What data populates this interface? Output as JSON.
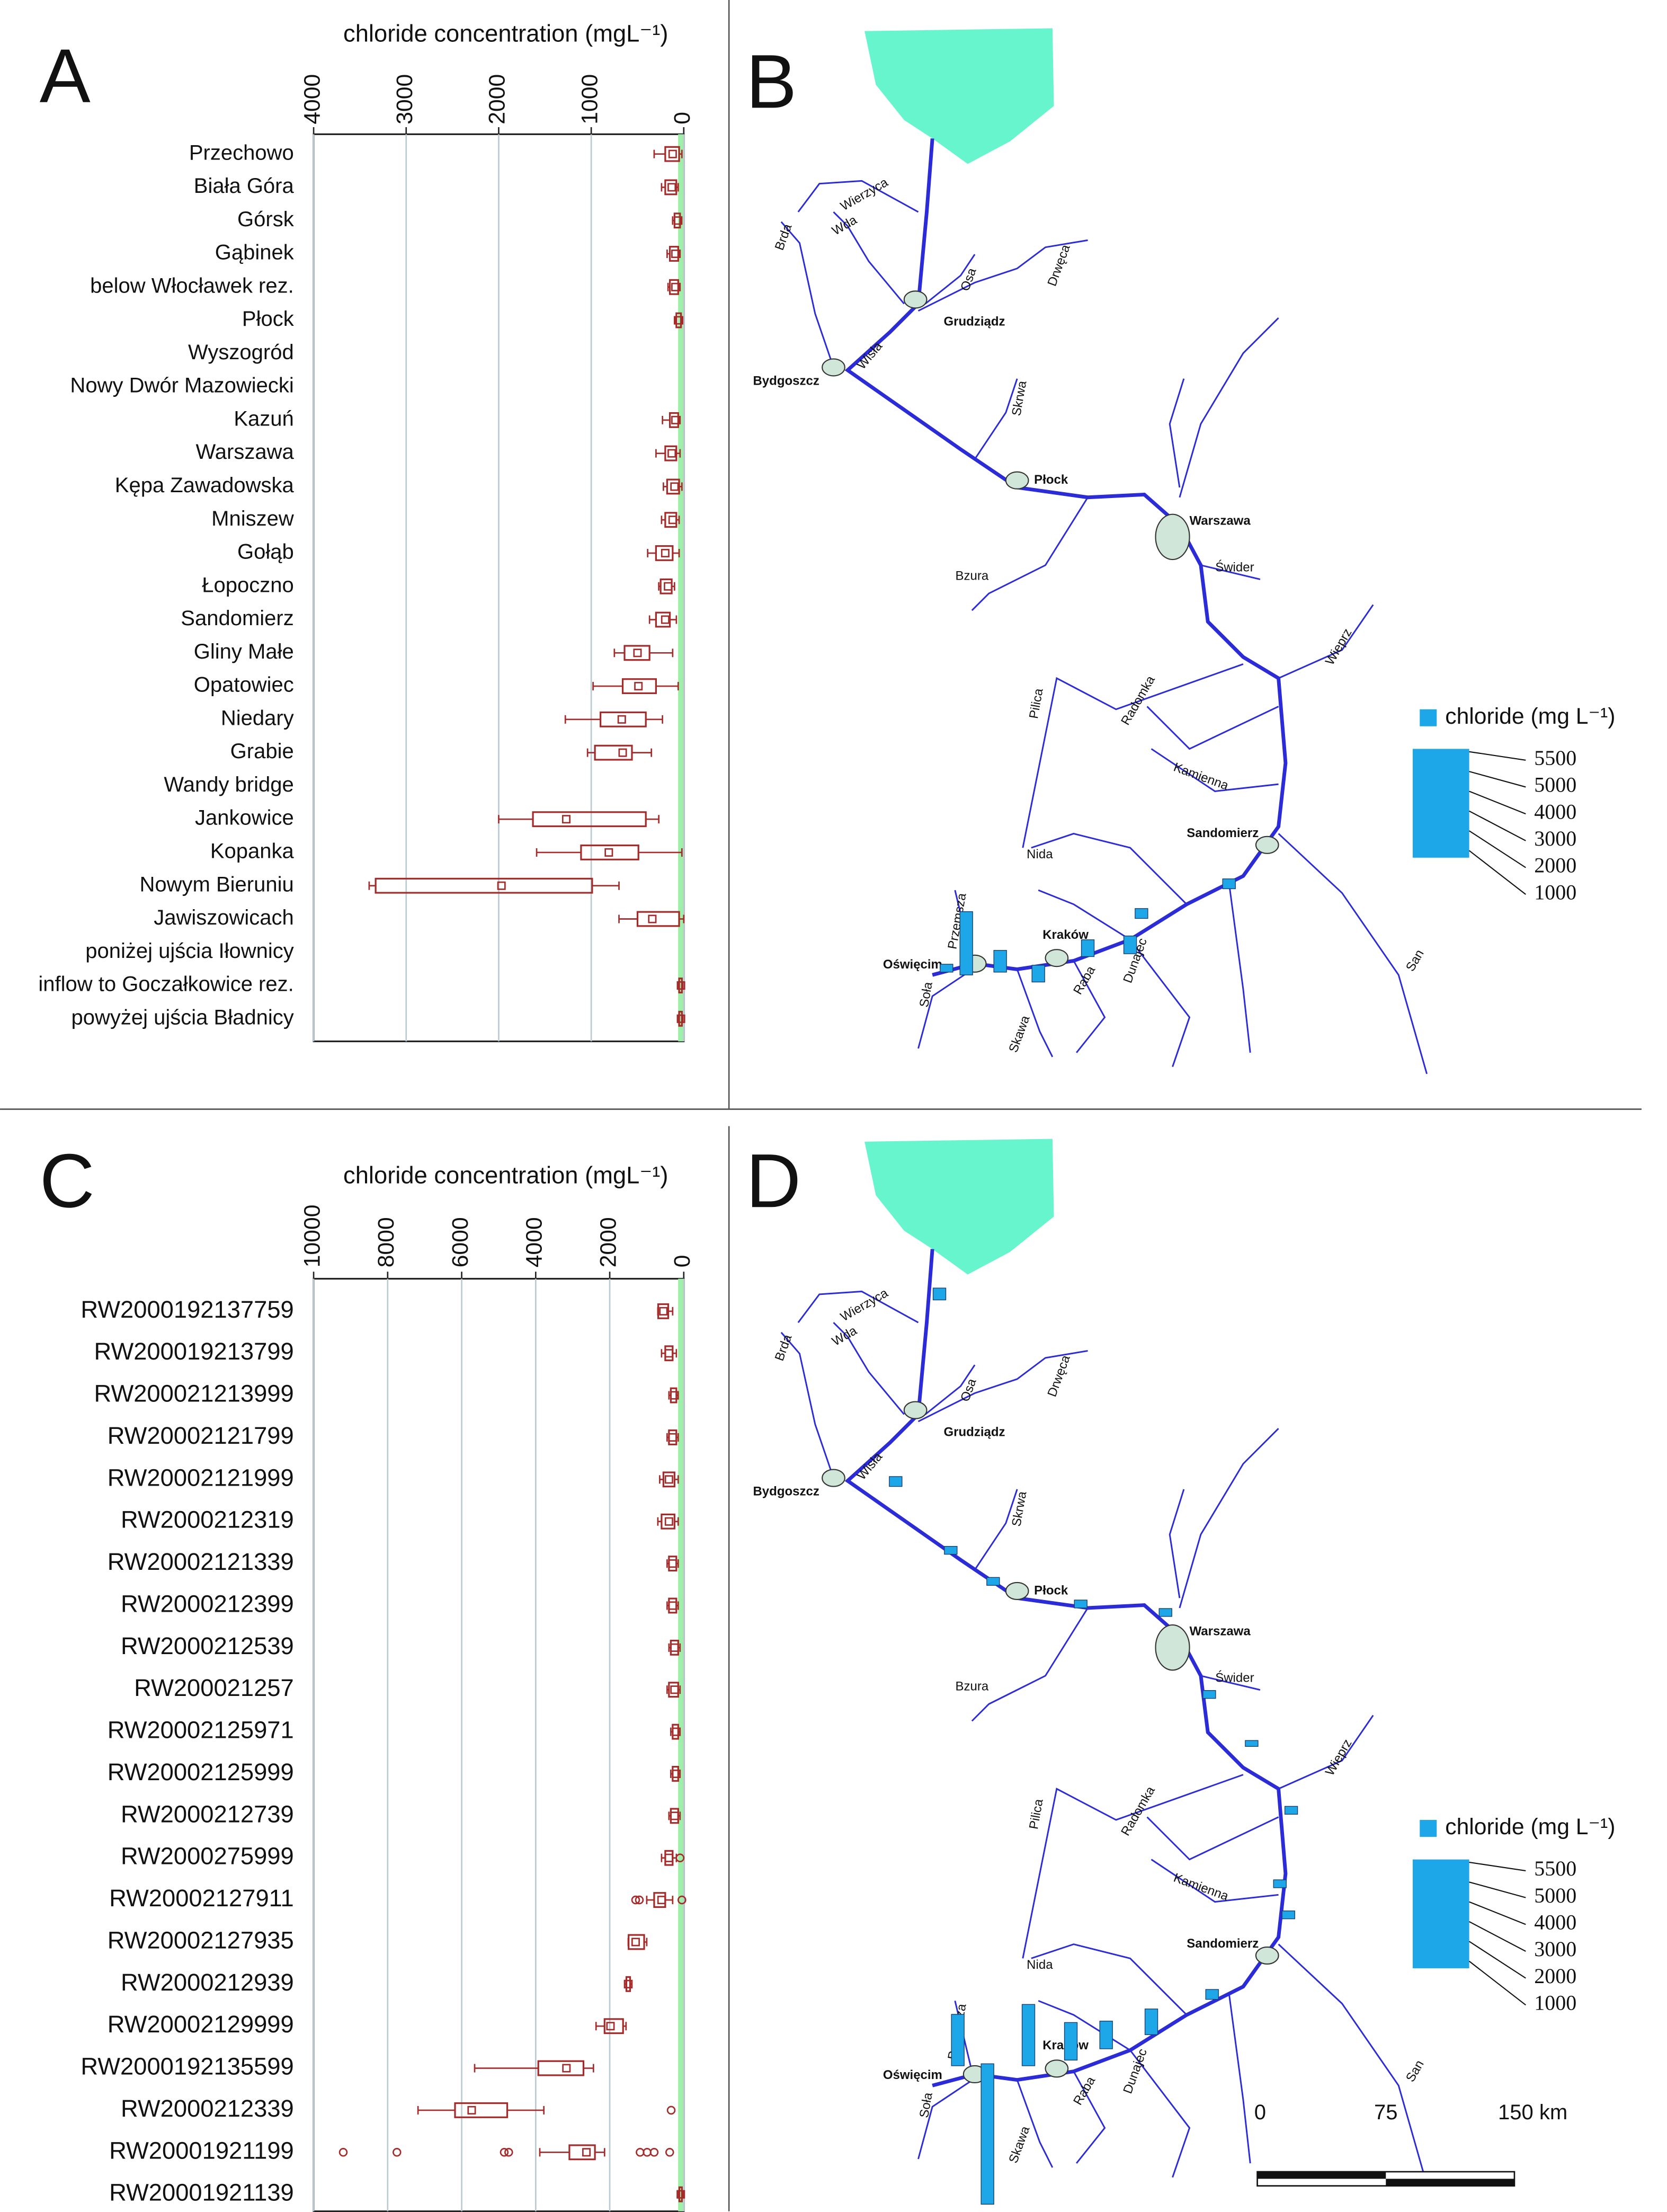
{
  "chart_data": [
    {
      "type": "boxplot",
      "panel_label": "A",
      "xlabel": "chloride concentration (mgL⁻¹)",
      "xlim": [
        0,
        4000
      ],
      "xticks": [
        0,
        1000,
        2000,
        3000,
        4000
      ],
      "x_reversed": true,
      "grid": true,
      "color": "#a52a2a",
      "categories": [
        "Przechowo",
        "Biała Góra",
        "Górsk",
        "Gąbinek",
        "below Włocławek rez.",
        "Płock",
        "Wyszogród",
        "Nowy Dwór Mazowiecki",
        "Kazuń",
        "Warszawa",
        "Kępa Zawadowska",
        "Mniszew",
        "Gołąb",
        "Łopoczno",
        "Sandomierz",
        "Gliny Małe",
        "Opatowiec",
        "Niedary",
        "Grabie",
        "Wandy bridge",
        "Jankowice",
        "Kopanka",
        "Nowym Bieruniu",
        "Jawiszowicach",
        "poniżej ujścia Iłownicy",
        "inflow to Goczałkowice rez.",
        "powyżej ujścia Bładnicy"
      ],
      "boxes": [
        [
          20,
          50,
          120,
          200,
          320
        ],
        [
          60,
          80,
          130,
          200,
          240
        ],
        [
          30,
          40,
          60,
          100,
          120
        ],
        [
          40,
          60,
          90,
          150,
          180
        ],
        [
          40,
          60,
          90,
          150,
          170
        ],
        [
          20,
          30,
          50,
          80,
          100
        ],
        null,
        null,
        [
          40,
          60,
          90,
          150,
          230
        ],
        [
          40,
          80,
          130,
          200,
          300
        ],
        [
          20,
          50,
          100,
          180,
          220
        ],
        [
          50,
          80,
          120,
          200,
          240
        ],
        [
          50,
          120,
          200,
          300,
          390
        ],
        [
          100,
          130,
          170,
          250,
          270
        ],
        [
          80,
          150,
          200,
          300,
          370
        ],
        [
          120,
          370,
          500,
          640,
          750
        ],
        [
          60,
          300,
          490,
          660,
          980
        ],
        [
          230,
          410,
          670,
          900,
          1280
        ],
        [
          350,
          560,
          660,
          960,
          1040
        ],
        null,
        [
          270,
          410,
          1270,
          1630,
          2000
        ],
        [
          20,
          490,
          810,
          1110,
          1590
        ],
        [
          700,
          990,
          1970,
          3330,
          3400
        ],
        [
          0,
          50,
          340,
          500,
          700
        ],
        null,
        [
          10,
          20,
          30,
          50,
          60
        ],
        [
          10,
          20,
          30,
          50,
          60
        ]
      ]
    },
    {
      "type": "map",
      "panel_label": "B",
      "legend_title": "chloride (mg L⁻¹)",
      "legend_ticks": [
        5500,
        5000,
        4000,
        3000,
        2000,
        1000
      ],
      "bar_color": "#1ea7e8",
      "cities": [
        "Grudziądz",
        "Bydgoszcz",
        "Płock",
        "Warszawa",
        "Sandomierz",
        "Kraków",
        "Oświęcim"
      ],
      "rivers": [
        "Wierzyca",
        "Wda",
        "Brda",
        "Osa",
        "Drwęca",
        "Wisła",
        "Skrwa",
        "Bzura",
        "Świder",
        "Pilica",
        "Radomka",
        "Wieprz",
        "Kamienna",
        "Nida",
        "San",
        "Soła",
        "Skawa",
        "Raba",
        "Dunajec",
        "Przemsza"
      ],
      "bars": [
        3200,
        1100,
        850,
        850,
        900,
        500,
        500,
        400
      ]
    },
    {
      "type": "boxplot",
      "panel_label": "C",
      "xlabel": "chloride concentration (mgL⁻¹)",
      "xlim": [
        0,
        10000
      ],
      "xticks": [
        0,
        2000,
        4000,
        6000,
        8000,
        10000
      ],
      "x_reversed": true,
      "grid": true,
      "color": "#a52a2a",
      "categories": [
        "RW2000192137759",
        "RW200019213799",
        "RW200021213999",
        "RW20002121799",
        "RW20002121999",
        "RW2000212319",
        "RW20002121339",
        "RW2000212399",
        "RW2000212539",
        "RW200021257",
        "RW20002125971",
        "RW20002125999",
        "RW2000212739",
        "RW2000275999",
        "RW20002127911",
        "RW20002127935",
        "RW2000212939",
        "RW20002129999",
        "RW2000192135599",
        "RW2000212339",
        "RW20001921199",
        "RW20001921139"
      ],
      "boxes": [
        [
          300,
          420,
          550,
          690,
          700
        ],
        [
          200,
          300,
          400,
          500,
          600
        ],
        [
          150,
          200,
          250,
          350,
          400
        ],
        [
          150,
          200,
          300,
          400,
          450
        ],
        [
          150,
          250,
          400,
          550,
          650
        ],
        [
          150,
          250,
          400,
          600,
          700
        ],
        [
          150,
          200,
          300,
          400,
          450
        ],
        [
          150,
          200,
          300,
          400,
          450
        ],
        [
          100,
          150,
          250,
          350,
          400
        ],
        [
          100,
          150,
          250,
          400,
          450
        ],
        [
          100,
          150,
          200,
          300,
          350
        ],
        [
          100,
          150,
          200,
          300,
          350
        ],
        [
          100,
          150,
          250,
          350,
          400
        ],
        [
          200,
          300,
          400,
          500,
          600
        ],
        [
          300,
          500,
          600,
          800,
          1000
        ],
        [
          1000,
          1070,
          1300,
          1490,
          1500
        ],
        [
          1400,
          1450,
          1500,
          1550,
          1600
        ],
        [
          1560,
          1640,
          1980,
          2140,
          2370
        ],
        [
          2440,
          2710,
          3170,
          3930,
          5650
        ],
        [
          3780,
          4770,
          5730,
          6180,
          7180
        ],
        [
          2140,
          2400,
          2630,
          3090,
          3890
        ],
        [
          20,
          50,
          80,
          120,
          150
        ]
      ],
      "outliers": [
        [],
        [],
        [],
        [],
        [],
        [],
        [],
        [],
        [],
        [],
        [],
        [],
        [],
        [
          100
        ],
        [
          1200,
          1300,
          50
        ],
        [],
        [],
        [],
        [],
        [
          340
        ],
        [
          9200,
          7750,
          4850,
          4730,
          1180,
          990,
          800,
          380
        ],
        []
      ]
    },
    {
      "type": "map",
      "panel_label": "D",
      "legend_title": "chloride (mg L⁻¹)",
      "legend_ticks": [
        5500,
        5000,
        4000,
        3000,
        2000,
        1000
      ],
      "bar_color": "#1ea7e8",
      "cities": [
        "Grudziądz",
        "Bydgoszcz",
        "Płock",
        "Warszawa",
        "Sandomierz",
        "Kraków",
        "Oświęcim"
      ],
      "rivers": [
        "Wierzyca",
        "Wda",
        "Brda",
        "Osa",
        "Drwęca",
        "Wisła",
        "Skrwa",
        "Bzura",
        "Świder",
        "Pilica",
        "Radomka",
        "Wieprz",
        "Kamienna",
        "Nida",
        "San",
        "Soła",
        "Skawa",
        "Raba",
        "Dunajec",
        "Przemsza"
      ],
      "bars": [
        2600,
        7100,
        3100,
        1900,
        1400,
        1300,
        600,
        500,
        400,
        400,
        400,
        400,
        400,
        300,
        400,
        400,
        400,
        500
      ],
      "scale_labels": [
        "0",
        "75",
        "150 km"
      ]
    }
  ]
}
